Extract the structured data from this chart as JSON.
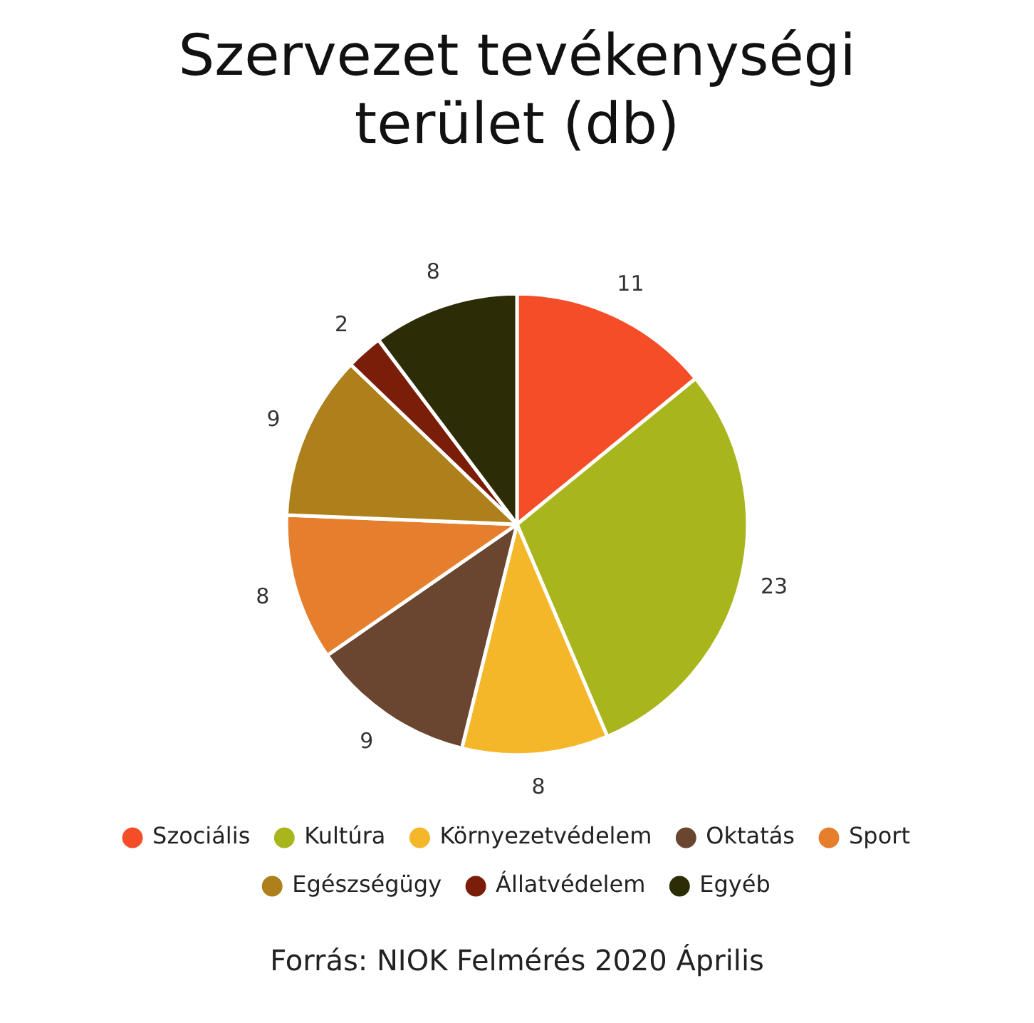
{
  "chart_data": {
    "type": "pie",
    "title": "Szervezet tevékenységi terület (db)",
    "categories": [
      "Szociális",
      "Kultúra",
      "Környezetvédelem",
      "Oktatás",
      "Sport",
      "Egészségügy",
      "Állatvédelem",
      "Egyéb"
    ],
    "values": [
      11,
      23,
      8,
      9,
      8,
      9,
      2,
      8
    ],
    "colors": [
      "#f54d27",
      "#a9b51c",
      "#f5b72a",
      "#6a4530",
      "#e57f2e",
      "#ad801c",
      "#7a1e0a",
      "#2c2d06"
    ],
    "data_labels": true,
    "legend": "bottom",
    "annotations": [
      "Forrás: NIOK Felmérés 2020 Április"
    ]
  }
}
